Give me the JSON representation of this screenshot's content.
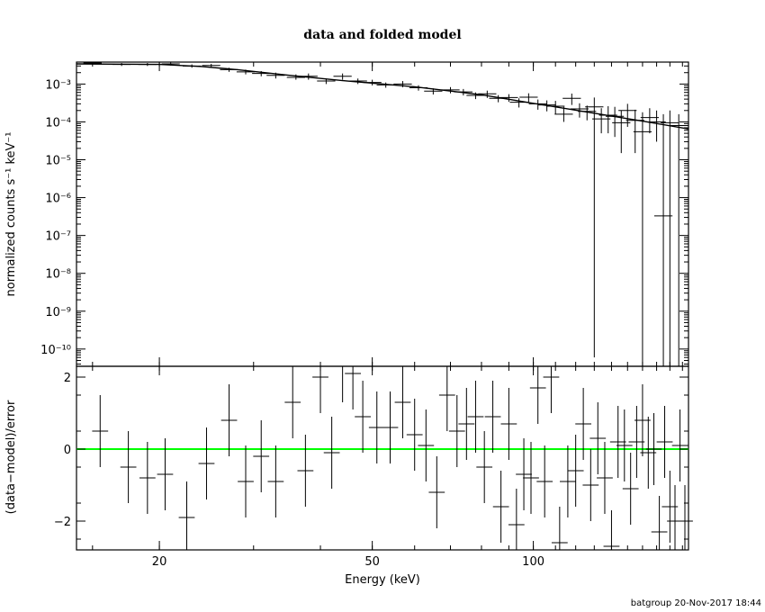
{
  "title": "data and folded model",
  "footer": "batgroup 20-Nov-2017 18:44",
  "colors": {
    "zero_line": "#00ff00",
    "data": "#000000"
  },
  "chart_data": [
    {
      "type": "scatter",
      "panel": "top",
      "title": "data and folded model",
      "ylabel": "normalized counts s⁻¹ keV⁻¹",
      "xscale": "log",
      "yscale": "log",
      "xlim": [
        14,
        195
      ],
      "ylim": [
        3.5e-11,
        0.0038
      ],
      "yticks": [
        {
          "value": 0.001,
          "label": "10⁻³"
        },
        {
          "value": 0.0001,
          "label": "10⁻⁴"
        },
        {
          "value": 1e-05,
          "label": "10⁻⁵"
        },
        {
          "value": 1e-06,
          "label": "10⁻⁶"
        },
        {
          "value": 1e-07,
          "label": "10⁻⁷"
        },
        {
          "value": 1e-08,
          "label": "10⁻⁸"
        },
        {
          "value": 1e-09,
          "label": "10⁻⁹"
        },
        {
          "value": 1e-10,
          "label": "10⁻¹⁰"
        }
      ],
      "series": [
        {
          "kind": "model",
          "x": [
            14,
            20,
            24,
            28,
            35,
            45,
            60,
            80,
            100,
            130,
            160,
            195
          ],
          "y": [
            0.0034,
            0.0033,
            0.0029,
            0.0024,
            0.0017,
            0.0012,
            0.00085,
            0.00052,
            0.00031,
            0.00017,
            0.000105,
            6.5e-05
          ]
        },
        {
          "kind": "data",
          "x": [
            15,
            17,
            19,
            21,
            23,
            25,
            27,
            29,
            31,
            33,
            36,
            38,
            41,
            44,
            47,
            50,
            53,
            57,
            61,
            65,
            70,
            74,
            78,
            82,
            86,
            90,
            94,
            98,
            102,
            106,
            110,
            114,
            118,
            122,
            126,
            130,
            134,
            138,
            142,
            146,
            150,
            155,
            160,
            165,
            170,
            175,
            180,
            187
          ],
          "y": [
            0.0036,
            0.0033,
            0.0033,
            0.0034,
            0.003,
            0.0031,
            0.0024,
            0.0021,
            0.0019,
            0.0017,
            0.0015,
            0.0016,
            0.0012,
            0.0016,
            0.0012,
            0.0011,
            0.00095,
            0.001,
            0.0008,
            0.00065,
            0.0007,
            0.00062,
            0.0005,
            0.00055,
            0.00042,
            0.00044,
            0.00033,
            0.00045,
            0.0003,
            0.00028,
            0.00026,
            0.00016,
            0.00042,
            0.00022,
            0.00019,
            0.00025,
            0.00012,
            0.00015,
            0.00014,
            9.5e-05,
            0.0002,
            0.00011,
            5.5e-05,
            0.00013,
            0.0001,
            3.3e-07,
            9.5e-05,
            8e-05
          ],
          "ylo": [
            0.0033,
            0.003,
            0.003,
            0.0031,
            0.0027,
            0.0028,
            0.0021,
            0.0018,
            0.0016,
            0.0014,
            0.0013,
            0.0013,
            0.001,
            0.0013,
            0.001,
            0.00092,
            0.0008,
            0.00082,
            0.00067,
            0.00053,
            0.00057,
            0.0005,
            0.0004,
            0.00043,
            0.00033,
            0.00034,
            0.00024,
            0.00033,
            0.00021,
            0.00019,
            0.00016,
            0.0001,
            0.00028,
            0.00013,
            0.00011,
            6e-11,
            5e-05,
            5e-05,
            4e-05,
            1.5e-05,
            7.4e-05,
            1.5e-05,
            3.5e-11,
            5e-05,
            3e-05,
            3.5e-11,
            3.5e-11,
            3.5e-11
          ],
          "yhi": [
            0.0038,
            0.0036,
            0.0036,
            0.0037,
            0.0033,
            0.0034,
            0.0027,
            0.0024,
            0.0022,
            0.002,
            0.0018,
            0.0019,
            0.0014,
            0.0019,
            0.0014,
            0.0013,
            0.0011,
            0.0012,
            0.00093,
            0.00077,
            0.00083,
            0.00074,
            0.0006,
            0.00067,
            0.00051,
            0.00054,
            0.00042,
            0.00057,
            0.00039,
            0.00037,
            0.00036,
            0.00025,
            0.00056,
            0.00031,
            0.00027,
            0.00044,
            0.00023,
            0.00026,
            0.00025,
            0.0002,
            0.0003,
            0.00021,
            0.00018,
            0.00023,
            0.0002,
            0.00016,
            0.0002,
            0.00016
          ]
        }
      ]
    },
    {
      "type": "scatter",
      "panel": "bottom",
      "xlabel": "Energy (keV)",
      "ylabel": "(data−model)/error",
      "xscale": "log",
      "xlim": [
        14,
        195
      ],
      "ylim": [
        -2.8,
        2.3
      ],
      "xticks": [
        {
          "value": 20,
          "label": "20"
        },
        {
          "value": 50,
          "label": "50"
        },
        {
          "value": 100,
          "label": "100"
        }
      ],
      "yticks": [
        {
          "value": 2,
          "label": "2"
        },
        {
          "value": 0,
          "label": "0"
        },
        {
          "value": -2,
          "label": "−2"
        }
      ],
      "zero_line": 0,
      "residuals": {
        "x": [
          15.5,
          17.5,
          19,
          20.5,
          22.5,
          24.5,
          27,
          29,
          31,
          33,
          35.5,
          37.5,
          40,
          42,
          44,
          46,
          48,
          51,
          54,
          57,
          60,
          63,
          66,
          69,
          72,
          75,
          78,
          81,
          84,
          87,
          90,
          93,
          96,
          99,
          102,
          105,
          108,
          112,
          116,
          120,
          124,
          128,
          132,
          136,
          140,
          144,
          148,
          152,
          156,
          160,
          164,
          168,
          172,
          176,
          180,
          184,
          188,
          192
        ],
        "y": [
          0.5,
          -0.5,
          -0.8,
          -0.7,
          -1.9,
          -0.4,
          0.8,
          -0.9,
          -0.2,
          -0.9,
          1.3,
          -0.6,
          2.0,
          -0.1,
          2.3,
          2.1,
          0.9,
          0.6,
          0.6,
          1.3,
          0.4,
          0.1,
          -1.2,
          1.5,
          0.5,
          0.7,
          0.9,
          -0.5,
          0.9,
          -1.6,
          0.7,
          -2.1,
          -0.7,
          -0.8,
          1.7,
          -0.9,
          2.0,
          -2.6,
          -0.9,
          -0.6,
          0.7,
          -1.0,
          0.3,
          -0.8,
          -2.7,
          0.2,
          0.1,
          -1.1,
          0.2,
          0.8,
          -0.1,
          0.0,
          -2.3,
          0.2,
          -1.6,
          -2.0,
          0.1,
          -2.0
        ],
        "err": [
          1.0,
          1.0,
          1.0,
          1.0,
          1.0,
          1.0,
          1.0,
          1.0,
          1.0,
          1.0,
          1.0,
          1.0,
          1.0,
          1.0,
          1.0,
          1.0,
          1.0,
          1.0,
          1.0,
          1.0,
          1.0,
          1.0,
          1.0,
          1.0,
          1.0,
          1.0,
          1.0,
          1.0,
          1.0,
          1.0,
          1.0,
          1.0,
          1.0,
          1.0,
          1.0,
          1.0,
          1.0,
          1.0,
          1.0,
          1.0,
          1.0,
          1.0,
          1.0,
          1.0,
          1.0,
          1.0,
          1.0,
          1.0,
          1.0,
          1.0,
          1.0,
          1.0,
          1.0,
          1.0,
          1.0,
          1.0,
          1.0,
          1.0
        ]
      }
    }
  ]
}
